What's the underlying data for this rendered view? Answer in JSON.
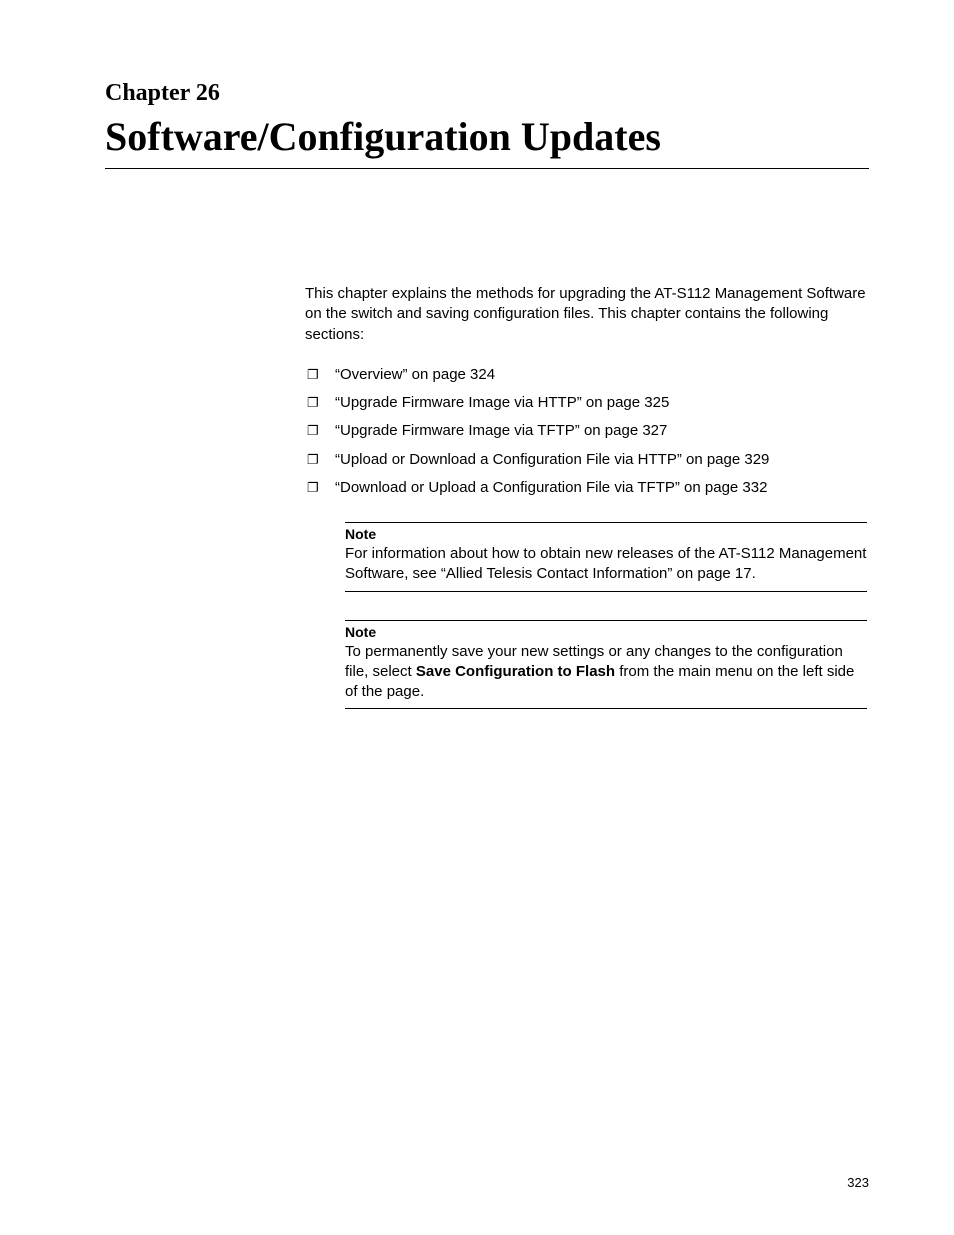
{
  "colors": {
    "background": "#ffffff",
    "text": "#000000",
    "rule": "#000000"
  },
  "typography": {
    "body_font": "Arial, Helvetica, sans-serif",
    "heading_font": "\"Times New Roman\", Times, serif",
    "chapter_label_size_pt": 18,
    "chapter_title_size_pt": 30,
    "body_size_pt": 11,
    "note_heading_size_pt": 10,
    "page_number_size_pt": 10
  },
  "chapter": {
    "label": "Chapter 26",
    "title": "Software/Configuration Updates"
  },
  "intro": "This chapter explains the methods for upgrading the AT-S112 Management Software on the switch and saving configuration files. This chapter contains the following sections:",
  "sections": [
    "“Overview” on page 324",
    "“Upgrade Firmware Image via HTTP” on page 325",
    "“Upgrade Firmware Image via TFTP” on page 327",
    "“Upload or Download a Configuration File via HTTP” on page 329",
    "“Download or Upload a Configuration File via TFTP” on page 332"
  ],
  "notes": [
    {
      "heading": "Note",
      "body_pre": "For information about how to obtain new releases of the AT-S112 Management Software, see “Allied Telesis Contact Information” on page 17.",
      "body_bold": "",
      "body_post": ""
    },
    {
      "heading": "Note",
      "body_pre": "To permanently save your new settings or any changes to the configuration file, select ",
      "body_bold": "Save Configuration to Flash",
      "body_post": " from the main menu on the left side of the page."
    }
  ],
  "page_number": "323"
}
